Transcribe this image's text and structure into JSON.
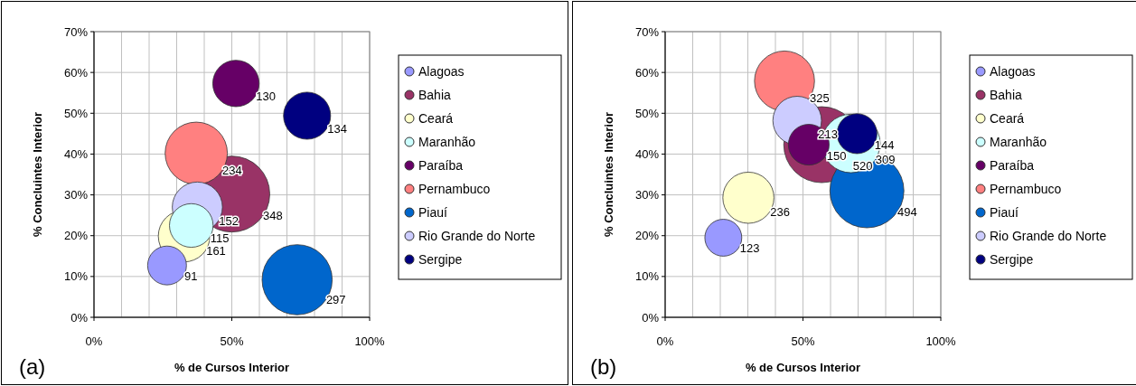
{
  "chart_data": [
    {
      "type": "bubble",
      "xlabel": "% de Cursos Interior",
      "ylabel": "% Concluintes Interior",
      "annotations": [
        "(a)"
      ],
      "xlim": [
        0,
        1
      ],
      "xticks": [
        {
          "value": 0,
          "label": "0%"
        },
        {
          "value": 0.5,
          "label": "50%"
        },
        {
          "value": 1,
          "label": "100%"
        }
      ],
      "ylim": [
        0,
        0.7
      ],
      "yticks": [
        {
          "value": 0,
          "label": "0%"
        },
        {
          "value": 0.1,
          "label": "10%"
        },
        {
          "value": 0.2,
          "label": "20%"
        },
        {
          "value": 0.3,
          "label": "30%"
        },
        {
          "value": 0.4,
          "label": "40%"
        },
        {
          "value": 0.5,
          "label": "50%"
        },
        {
          "value": 0.6,
          "label": "60%"
        },
        {
          "value": 0.7,
          "label": "70%"
        }
      ],
      "grid": true,
      "legend": "right",
      "series": [
        {
          "name": "Alagoas",
          "color": "#9999ff",
          "x": [
            0.265
          ],
          "values": [
            0.127
          ],
          "sizes": [
            91
          ],
          "value_labels": [
            "91"
          ]
        },
        {
          "name": "Bahia",
          "color": "#993366",
          "x": [
            0.5
          ],
          "values": [
            0.302
          ],
          "sizes": [
            348
          ],
          "value_labels": [
            "348"
          ]
        },
        {
          "name": "Ceará",
          "color": "#ffffcc",
          "x": [
            0.327
          ],
          "values": [
            0.199
          ],
          "sizes": [
            161
          ],
          "value_labels": [
            "161"
          ]
        },
        {
          "name": "Maranhão",
          "color": "#ccffff",
          "x": [
            0.353
          ],
          "values": [
            0.225
          ],
          "sizes": [
            115
          ],
          "value_labels": [
            "115"
          ]
        },
        {
          "name": "Paraíba",
          "color": "#660066",
          "x": [
            0.515
          ],
          "values": [
            0.573
          ],
          "sizes": [
            130
          ],
          "value_labels": [
            "130"
          ]
        },
        {
          "name": "Pernambuco",
          "color": "#ff8080",
          "x": [
            0.371
          ],
          "values": [
            0.402
          ],
          "sizes": [
            234
          ],
          "value_labels": [
            "234"
          ]
        },
        {
          "name": "Piauí",
          "color": "#0066cc",
          "x": [
            0.737
          ],
          "values": [
            0.092
          ],
          "sizes": [
            297
          ],
          "value_labels": [
            "297"
          ]
        },
        {
          "name": "Rio Grande do Norte",
          "color": "#ccccff",
          "x": [
            0.375
          ],
          "values": [
            0.27
          ],
          "sizes": [
            152
          ],
          "value_labels": [
            "152"
          ]
        },
        {
          "name": "Sergipe",
          "color": "#000080",
          "x": [
            0.773
          ],
          "values": [
            0.494
          ],
          "sizes": [
            134
          ],
          "value_labels": [
            "134"
          ]
        }
      ]
    },
    {
      "type": "bubble",
      "xlabel": "% de Cursos Interior",
      "ylabel": "% Concluintes Interior",
      "annotations": [
        "(b)"
      ],
      "xlim": [
        0,
        1
      ],
      "xticks": [
        {
          "value": 0,
          "label": "0%"
        },
        {
          "value": 0.5,
          "label": "50%"
        },
        {
          "value": 1,
          "label": "100%"
        }
      ],
      "ylim": [
        0,
        0.7
      ],
      "yticks": [
        {
          "value": 0,
          "label": "0%"
        },
        {
          "value": 0.1,
          "label": "10%"
        },
        {
          "value": 0.2,
          "label": "20%"
        },
        {
          "value": 0.3,
          "label": "30%"
        },
        {
          "value": 0.4,
          "label": "40%"
        },
        {
          "value": 0.5,
          "label": "50%"
        },
        {
          "value": 0.6,
          "label": "60%"
        },
        {
          "value": 0.7,
          "label": "70%"
        }
      ],
      "grid": true,
      "legend": "right",
      "series": [
        {
          "name": "Alagoas",
          "color": "#9999ff",
          "x": [
            0.211
          ],
          "values": [
            0.195
          ],
          "sizes": [
            123
          ],
          "value_labels": [
            "123"
          ]
        },
        {
          "name": "Bahia",
          "color": "#993366",
          "x": [
            0.568
          ],
          "values": [
            0.423
          ],
          "sizes": [
            520
          ],
          "value_labels": [
            "520"
          ]
        },
        {
          "name": "Ceará",
          "color": "#ffffcc",
          "x": [
            0.302
          ],
          "values": [
            0.293
          ],
          "sizes": [
            236
          ],
          "value_labels": [
            "236"
          ]
        },
        {
          "name": "Maranhão",
          "color": "#ccffff",
          "x": [
            0.674
          ],
          "values": [
            0.426
          ],
          "sizes": [
            309
          ],
          "value_labels": [
            "309"
          ]
        },
        {
          "name": "Paraíba",
          "color": "#660066",
          "x": [
            0.521
          ],
          "values": [
            0.423
          ],
          "sizes": [
            150
          ],
          "value_labels": [
            "150"
          ]
        },
        {
          "name": "Pernambuco",
          "color": "#ff8080",
          "x": [
            0.433
          ],
          "values": [
            0.579
          ],
          "sizes": [
            325
          ],
          "value_labels": [
            "325"
          ]
        },
        {
          "name": "Piauí",
          "color": "#0066cc",
          "x": [
            0.732
          ],
          "values": [
            0.31
          ],
          "sizes": [
            494
          ],
          "value_labels": [
            "494"
          ]
        },
        {
          "name": "Rio Grande do Norte",
          "color": "#ccccff",
          "x": [
            0.479
          ],
          "values": [
            0.482
          ],
          "sizes": [
            213
          ],
          "value_labels": [
            "213"
          ]
        },
        {
          "name": "Sergipe",
          "color": "#000080",
          "x": [
            0.696
          ],
          "values": [
            0.45
          ],
          "sizes": [
            144
          ],
          "value_labels": [
            "144"
          ]
        }
      ]
    }
  ]
}
